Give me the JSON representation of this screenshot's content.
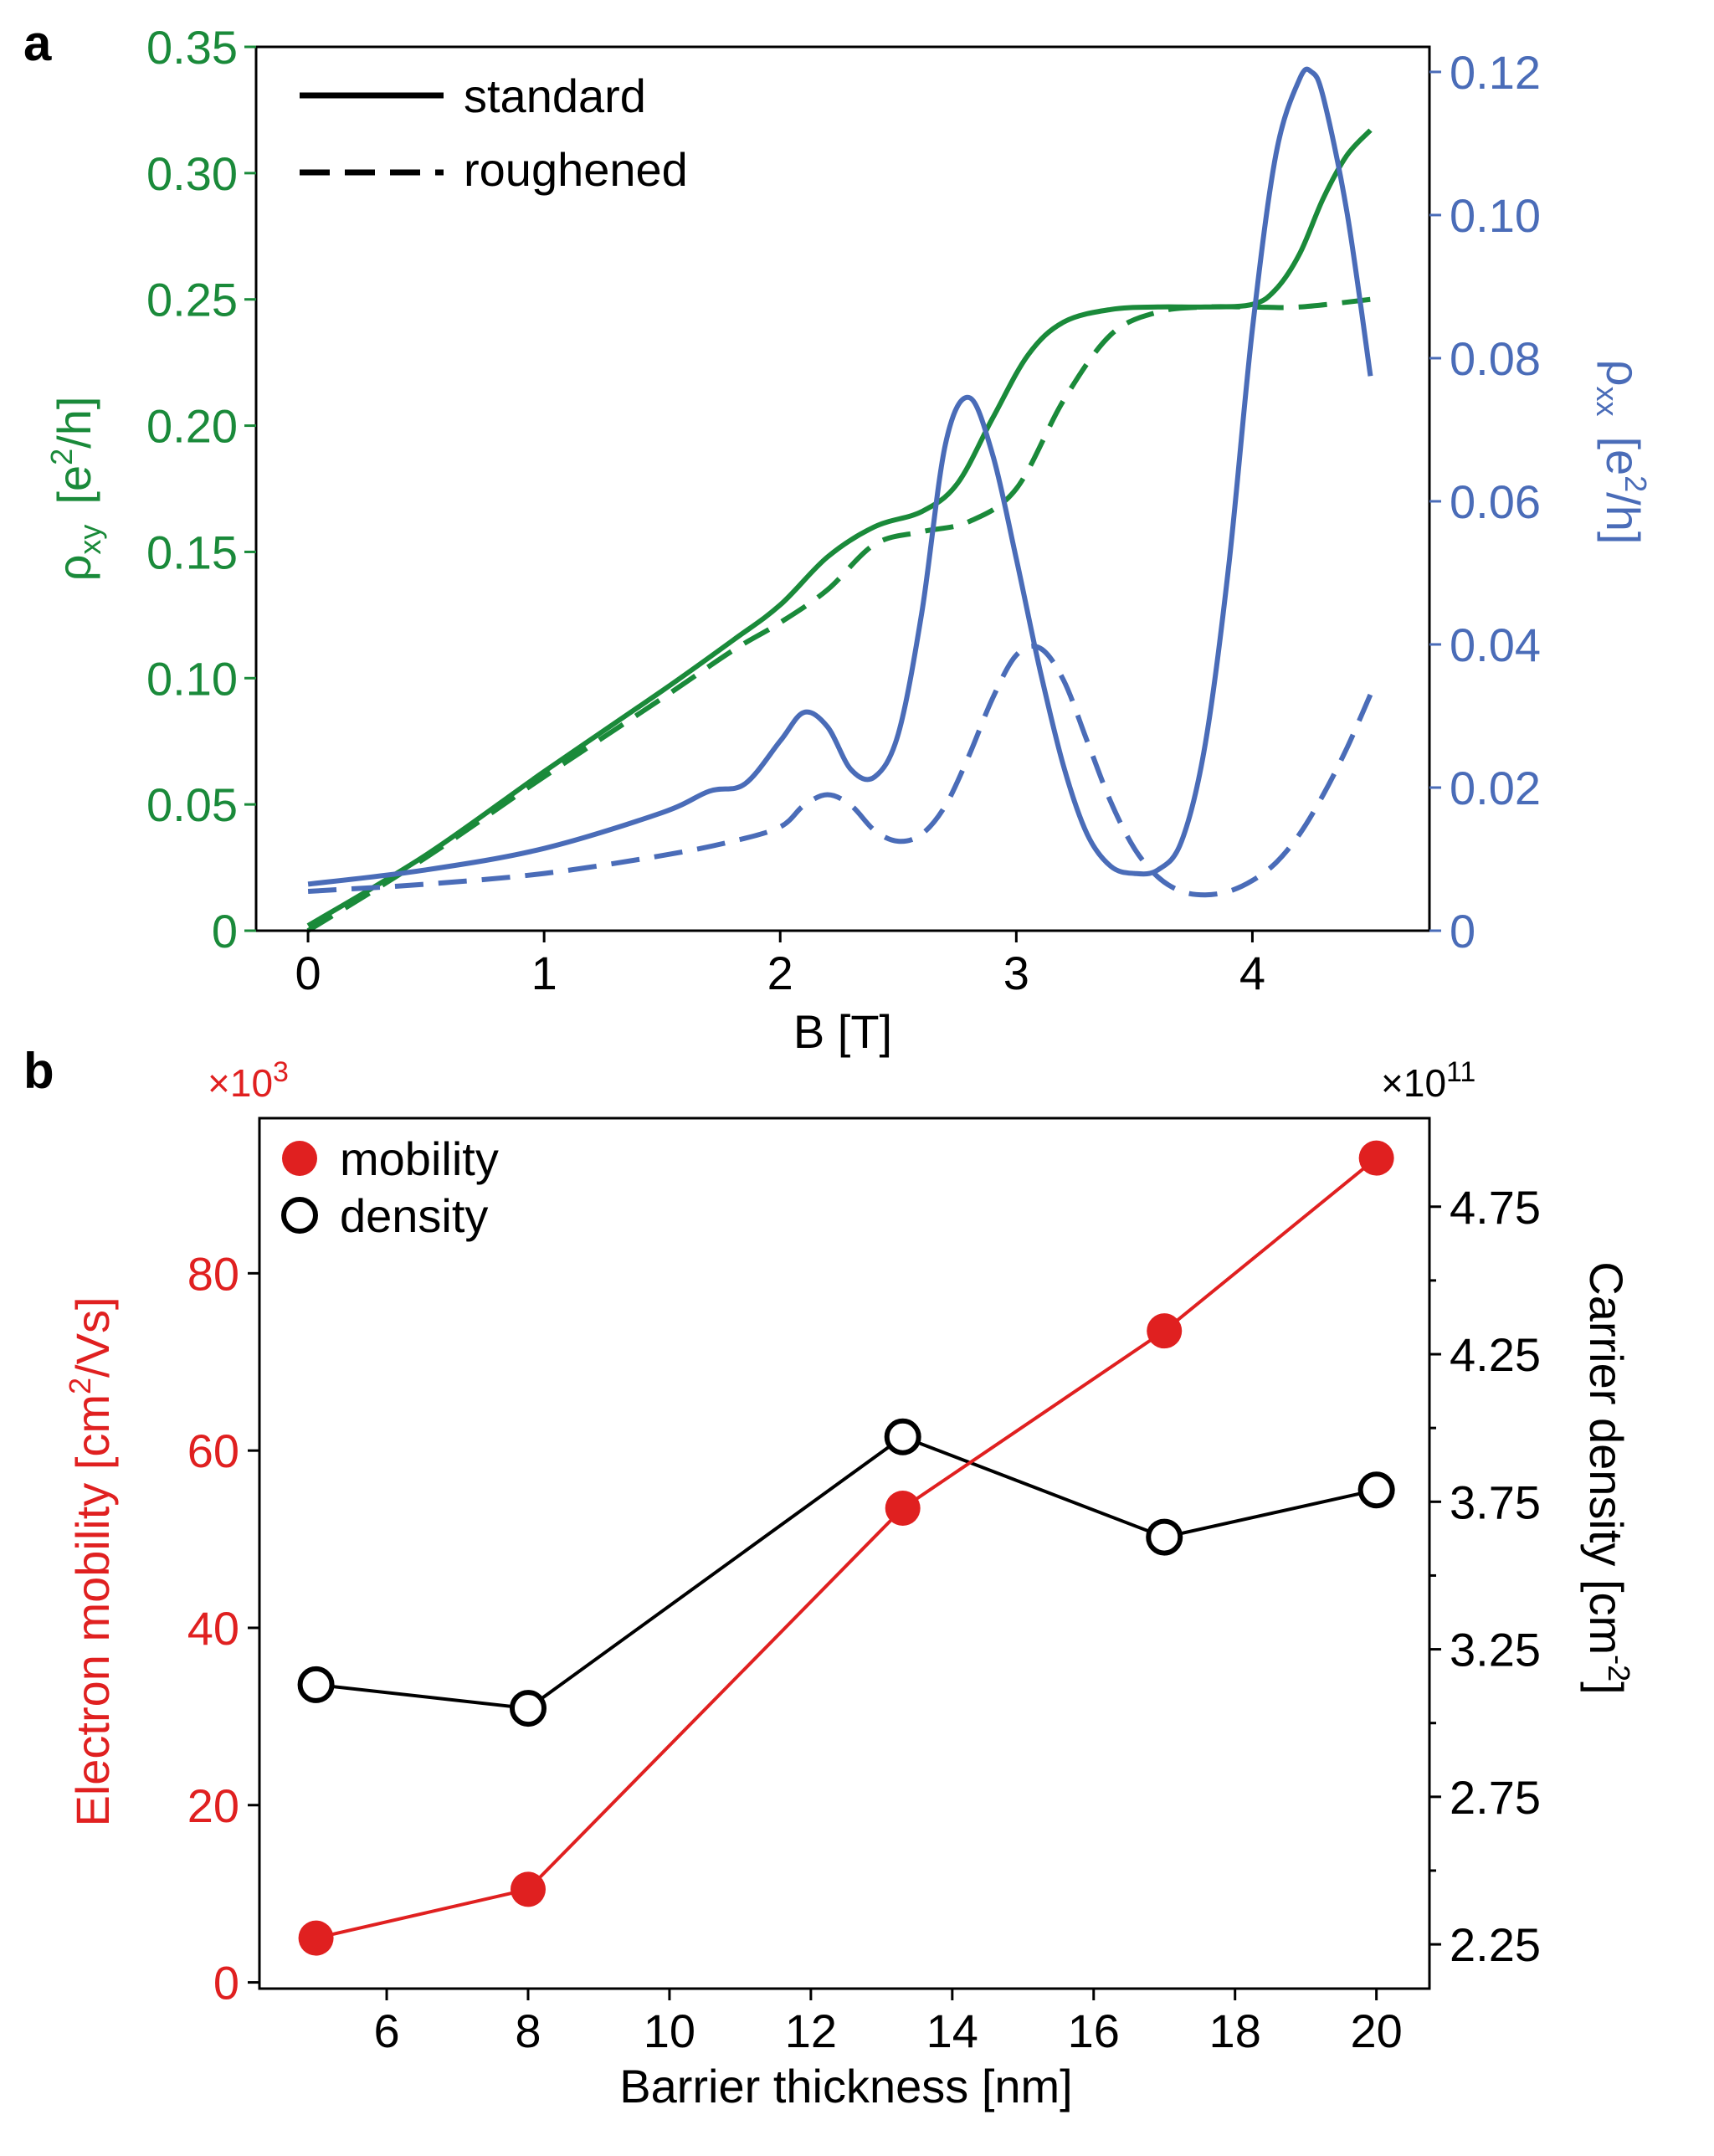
{
  "panels": {
    "a": {
      "letter": "a"
    },
    "b": {
      "letter": "b"
    }
  },
  "colors": {
    "green": "#1a8a3a",
    "blue": "#4a6cb8",
    "red": "#e02020",
    "black": "#000000"
  },
  "chart_data": [
    {
      "type": "line",
      "panel": "a",
      "xlabel": "B [T]",
      "xlim": [
        -0.22,
        4.75
      ],
      "x_ticks": [
        0,
        1,
        2,
        3,
        4
      ],
      "y_left": {
        "label_symbol": "ρ",
        "label_sub": "xy",
        "label_unit_pre": "[e",
        "label_unit_sup": "2",
        "label_unit_post": "/h]",
        "lim": [
          0,
          0.35
        ],
        "ticks": [
          0,
          0.05,
          0.1,
          0.15,
          0.2,
          0.25,
          0.3,
          0.35
        ],
        "tick_labels": [
          "0",
          "0.05",
          "0.10",
          "0.15",
          "0.20",
          "0.25",
          "0.30",
          "0.35"
        ],
        "color": "#1a8a3a"
      },
      "y_right": {
        "label_symbol": "ρ",
        "label_sub": "xx",
        "label_unit_pre": "[e",
        "label_unit_sup": "2",
        "label_unit_post": "/h]",
        "lim": [
          0,
          0.1235
        ],
        "ticks": [
          0,
          0.02,
          0.04,
          0.06,
          0.08,
          0.1,
          0.12
        ],
        "tick_labels": [
          "0",
          "0.02",
          "0.04",
          "0.06",
          "0.08",
          "0.10",
          "0.12"
        ],
        "color": "#4a6cb8"
      },
      "legend": [
        {
          "label": "standard",
          "style": "solid"
        },
        {
          "label": "roughened",
          "style": "dashed"
        }
      ],
      "series": [
        {
          "name": "rho_xy standard",
          "axis": "left",
          "style": "solid",
          "color": "#1a8a3a",
          "x": [
            0,
            0.5,
            1.0,
            1.5,
            1.8,
            2.0,
            2.2,
            2.4,
            2.6,
            2.75,
            2.9,
            3.05,
            3.2,
            3.4,
            3.6,
            3.8,
            4.0,
            4.1,
            4.2,
            4.3,
            4.4,
            4.5
          ],
          "y": [
            0.002,
            0.03,
            0.063,
            0.095,
            0.115,
            0.129,
            0.148,
            0.16,
            0.166,
            0.177,
            0.203,
            0.228,
            0.241,
            0.246,
            0.247,
            0.247,
            0.248,
            0.254,
            0.268,
            0.29,
            0.307,
            0.317
          ]
        },
        {
          "name": "rho_xy roughened",
          "axis": "left",
          "style": "dashed",
          "color": "#1a8a3a",
          "x": [
            0,
            0.5,
            1.0,
            1.5,
            1.8,
            2.0,
            2.2,
            2.4,
            2.6,
            2.8,
            3.0,
            3.2,
            3.4,
            3.6,
            3.8,
            4.0,
            4.2,
            4.5
          ],
          "y": [
            0.0,
            0.029,
            0.061,
            0.092,
            0.111,
            0.122,
            0.135,
            0.153,
            0.158,
            0.162,
            0.175,
            0.21,
            0.236,
            0.245,
            0.247,
            0.247,
            0.247,
            0.25
          ]
        },
        {
          "name": "rho_xx standard",
          "axis": "right",
          "style": "solid",
          "color": "#4a6cb8",
          "x": [
            0,
            0.5,
            1.0,
            1.5,
            1.7,
            1.85,
            2.0,
            2.1,
            2.2,
            2.3,
            2.4,
            2.5,
            2.6,
            2.7,
            2.8,
            2.9,
            3.0,
            3.1,
            3.2,
            3.3,
            3.4,
            3.5,
            3.6,
            3.7,
            3.8,
            3.9,
            4.0,
            4.1,
            4.2,
            4.25,
            4.3,
            4.4,
            4.5
          ],
          "y": [
            0.0065,
            0.0085,
            0.0115,
            0.0165,
            0.0195,
            0.0205,
            0.0265,
            0.0305,
            0.0285,
            0.0225,
            0.0215,
            0.0275,
            0.0445,
            0.068,
            0.0745,
            0.0665,
            0.052,
            0.0365,
            0.023,
            0.0135,
            0.009,
            0.008,
            0.0085,
            0.0125,
            0.026,
            0.051,
            0.084,
            0.1085,
            0.119,
            0.12,
            0.1165,
            0.1005,
            0.0775
          ]
        },
        {
          "name": "rho_xx roughened",
          "axis": "right",
          "style": "dashed",
          "color": "#4a6cb8",
          "x": [
            0,
            0.5,
            1.0,
            1.5,
            1.8,
            2.0,
            2.1,
            2.2,
            2.3,
            2.4,
            2.5,
            2.6,
            2.7,
            2.8,
            2.9,
            3.0,
            3.1,
            3.2,
            3.3,
            3.4,
            3.5,
            3.6,
            3.7,
            3.8,
            3.9,
            4.0,
            4.1,
            4.2,
            4.3,
            4.4,
            4.5
          ],
          "y": [
            0.0055,
            0.0065,
            0.008,
            0.0105,
            0.0125,
            0.0145,
            0.0175,
            0.019,
            0.0175,
            0.014,
            0.0125,
            0.0135,
            0.0175,
            0.0245,
            0.0325,
            0.0385,
            0.0395,
            0.035,
            0.0265,
            0.018,
            0.0115,
            0.0075,
            0.0055,
            0.005,
            0.0055,
            0.007,
            0.0095,
            0.0135,
            0.019,
            0.0255,
            0.033
          ]
        }
      ]
    },
    {
      "type": "line",
      "panel": "b",
      "xlabel": "Barrier thickness [nm]",
      "xlim": [
        4.2,
        20.75
      ],
      "x_ticks": [
        6,
        8,
        10,
        12,
        14,
        16,
        18,
        20
      ],
      "y_left": {
        "label_pre": "Electron mobility [cm",
        "label_sup": "2",
        "label_post": "/Vs]",
        "multiplier_base": "×10",
        "multiplier_exp": "3",
        "lim": [
          -0.7,
          97.5
        ],
        "ticks": [
          0,
          20,
          40,
          60,
          80
        ],
        "tick_labels": [
          "0",
          "20",
          "40",
          "60",
          "80"
        ],
        "color": "#e02020"
      },
      "y_right": {
        "label_pre": "Carrier density [cm",
        "label_sup": "-2",
        "label_post": "]",
        "multiplier_base": "×10",
        "multiplier_exp": "11",
        "lim": [
          2.1,
          5.05
        ],
        "ticks": [
          2.25,
          2.75,
          3.25,
          3.75,
          4.25,
          4.75
        ],
        "minor_ticks": [
          2.5,
          3.0,
          3.5,
          4.0,
          4.5
        ],
        "tick_labels": [
          "2.25",
          "2.75",
          "3.25",
          "3.75",
          "4.25",
          "4.75"
        ],
        "color": "#000000"
      },
      "legend": [
        {
          "label": "mobility",
          "marker": "filled-circle",
          "color": "#e02020"
        },
        {
          "label": "density",
          "marker": "open-circle",
          "color": "#000000"
        }
      ],
      "series": [
        {
          "name": "mobility",
          "axis": "left",
          "color": "#e02020",
          "marker": "filled",
          "x": [
            5,
            8,
            13.3,
            17,
            20
          ],
          "y": [
            5,
            10.5,
            53.5,
            73.5,
            93
          ]
        },
        {
          "name": "density",
          "axis": "right",
          "color": "#000000",
          "marker": "open",
          "x": [
            5,
            8,
            13.3,
            17,
            20
          ],
          "y": [
            3.13,
            3.05,
            3.97,
            3.63,
            3.79
          ]
        }
      ]
    }
  ]
}
